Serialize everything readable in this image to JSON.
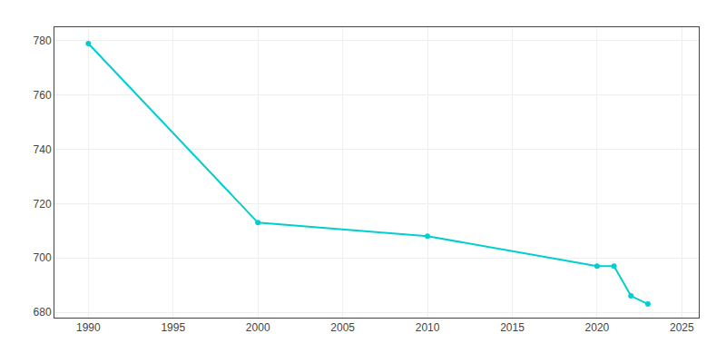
{
  "chart_data": {
    "type": "line",
    "x": [
      1990,
      2000,
      2010,
      2020,
      2021,
      2022,
      2023
    ],
    "values": [
      779,
      713,
      708,
      697,
      697,
      686,
      683
    ],
    "color": "#00CED1",
    "marker": "circle",
    "xlim": [
      1988,
      2026
    ],
    "xticks": [
      1990,
      1995,
      2000,
      2005,
      2010,
      2015,
      2020,
      2025
    ],
    "ylim": [
      678,
      785
    ],
    "yticks": [
      680,
      700,
      720,
      740,
      760,
      780
    ],
    "grid": true
  }
}
